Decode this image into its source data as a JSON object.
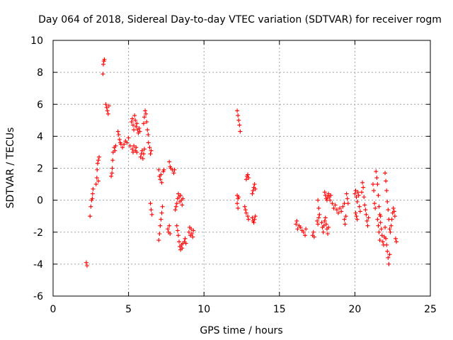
{
  "chart_data": {
    "type": "scatter",
    "title": "Day 064 of 2018, Sidereal Day-to-day VTEC variation (SDTVAR) for receiver rogm",
    "xlabel": "GPS time / hours",
    "ylabel": "SDTVAR / TECUs",
    "xlim": [
      0,
      25
    ],
    "ylim": [
      -6,
      10
    ],
    "xticks": [
      0,
      5,
      10,
      15,
      20,
      25
    ],
    "yticks": [
      -6,
      -4,
      -2,
      0,
      2,
      4,
      6,
      8,
      10
    ],
    "grid": true,
    "marker": "plus",
    "color": "#ff0000",
    "series": [
      {
        "name": "SDTVAR",
        "points": [
          [
            2.2,
            -3.9
          ],
          [
            2.25,
            -4.1
          ],
          [
            2.45,
            -1.0
          ],
          [
            2.5,
            -0.4
          ],
          [
            2.55,
            0.0
          ],
          [
            2.6,
            0.1
          ],
          [
            2.62,
            0.4
          ],
          [
            2.65,
            0.7
          ],
          [
            2.85,
            1.0
          ],
          [
            2.9,
            1.4
          ],
          [
            2.92,
            1.9
          ],
          [
            2.95,
            2.3
          ],
          [
            3.0,
            2.5
          ],
          [
            3.05,
            2.7
          ],
          [
            3.0,
            1.2
          ],
          [
            3.3,
            7.9
          ],
          [
            3.33,
            8.5
          ],
          [
            3.36,
            8.7
          ],
          [
            3.4,
            8.8
          ],
          [
            3.5,
            6.0
          ],
          [
            3.55,
            5.8
          ],
          [
            3.6,
            5.6
          ],
          [
            3.65,
            5.4
          ],
          [
            3.7,
            5.9
          ],
          [
            3.85,
            1.5
          ],
          [
            3.9,
            1.7
          ],
          [
            3.92,
            2.0
          ],
          [
            3.95,
            2.5
          ],
          [
            3.98,
            3.0
          ],
          [
            4.05,
            3.3
          ],
          [
            4.1,
            3.1
          ],
          [
            4.15,
            3.4
          ],
          [
            4.3,
            4.3
          ],
          [
            4.35,
            4.1
          ],
          [
            4.4,
            3.8
          ],
          [
            4.45,
            3.6
          ],
          [
            4.5,
            3.5
          ],
          [
            4.6,
            3.3
          ],
          [
            4.7,
            3.5
          ],
          [
            4.8,
            3.7
          ],
          [
            4.9,
            3.6
          ],
          [
            5.0,
            3.9
          ],
          [
            5.1,
            3.4
          ],
          [
            5.2,
            4.9
          ],
          [
            5.25,
            5.1
          ],
          [
            5.3,
            4.7
          ],
          [
            5.35,
            4.4
          ],
          [
            5.4,
            5.3
          ],
          [
            5.45,
            5.0
          ],
          [
            5.5,
            4.6
          ],
          [
            5.55,
            4.8
          ],
          [
            5.6,
            4.4
          ],
          [
            5.65,
            4.2
          ],
          [
            5.7,
            4.5
          ],
          [
            5.75,
            4.3
          ],
          [
            5.25,
            3.2
          ],
          [
            5.3,
            3.0
          ],
          [
            5.35,
            3.4
          ],
          [
            5.45,
            3.1
          ],
          [
            5.5,
            3.3
          ],
          [
            5.55,
            3.0
          ],
          [
            5.8,
            2.7
          ],
          [
            5.85,
            2.9
          ],
          [
            5.9,
            3.1
          ],
          [
            5.95,
            2.6
          ],
          [
            6.0,
            2.9
          ],
          [
            6.05,
            3.2
          ],
          [
            6.0,
            4.8
          ],
          [
            6.05,
            5.2
          ],
          [
            6.1,
            5.6
          ],
          [
            6.15,
            5.4
          ],
          [
            6.2,
            4.9
          ],
          [
            6.25,
            4.4
          ],
          [
            6.3,
            4.1
          ],
          [
            6.32,
            3.6
          ],
          [
            6.4,
            3.3
          ],
          [
            6.45,
            2.9
          ],
          [
            6.5,
            3.1
          ],
          [
            6.45,
            -0.2
          ],
          [
            6.5,
            -0.6
          ],
          [
            6.55,
            -0.9
          ],
          [
            7.0,
            -2.5
          ],
          [
            7.05,
            -2.1
          ],
          [
            7.1,
            -1.6
          ],
          [
            7.15,
            -1.2
          ],
          [
            7.2,
            -0.8
          ],
          [
            7.25,
            -0.4
          ],
          [
            7.0,
            1.9
          ],
          [
            7.05,
            1.5
          ],
          [
            7.1,
            1.3
          ],
          [
            7.15,
            1.6
          ],
          [
            7.2,
            1.1
          ],
          [
            7.3,
            1.8
          ],
          [
            7.35,
            1.9
          ],
          [
            7.6,
            -1.8
          ],
          [
            7.65,
            -2.0
          ],
          [
            7.7,
            -1.6
          ],
          [
            7.75,
            -2.1
          ],
          [
            7.7,
            2.4
          ],
          [
            7.75,
            2.1
          ],
          [
            7.8,
            2.0
          ],
          [
            7.9,
            1.9
          ],
          [
            8.0,
            1.7
          ],
          [
            8.05,
            1.9
          ],
          [
            8.1,
            -0.6
          ],
          [
            8.15,
            -0.4
          ],
          [
            8.2,
            -0.2
          ],
          [
            8.25,
            0.1
          ],
          [
            8.3,
            0.4
          ],
          [
            8.35,
            0.2
          ],
          [
            8.4,
            -0.1
          ],
          [
            8.45,
            0.3
          ],
          [
            8.5,
            0.0
          ],
          [
            8.55,
            -0.3
          ],
          [
            8.6,
            0.1
          ],
          [
            8.2,
            -1.6
          ],
          [
            8.25,
            -1.9
          ],
          [
            8.3,
            -2.2
          ],
          [
            8.35,
            -2.6
          ],
          [
            8.4,
            -2.9
          ],
          [
            8.45,
            -3.1
          ],
          [
            8.5,
            -2.8
          ],
          [
            8.55,
            -3.0
          ],
          [
            8.6,
            -2.7
          ],
          [
            8.7,
            -2.6
          ],
          [
            8.75,
            -2.4
          ],
          [
            8.8,
            -2.7
          ],
          [
            9.0,
            -2.0
          ],
          [
            9.05,
            -1.7
          ],
          [
            9.1,
            -2.2
          ],
          [
            9.15,
            -1.8
          ],
          [
            9.2,
            -2.1
          ],
          [
            9.25,
            -2.3
          ],
          [
            9.3,
            -1.9
          ],
          [
            12.2,
            5.6
          ],
          [
            12.25,
            5.3
          ],
          [
            12.3,
            5.0
          ],
          [
            12.35,
            4.7
          ],
          [
            12.4,
            4.3
          ],
          [
            12.2,
            0.3
          ],
          [
            12.25,
            0.1
          ],
          [
            12.3,
            0.2
          ],
          [
            12.2,
            -0.2
          ],
          [
            12.25,
            -0.5
          ],
          [
            12.7,
            -0.4
          ],
          [
            12.75,
            -0.6
          ],
          [
            12.8,
            -0.8
          ],
          [
            12.8,
            1.3
          ],
          [
            12.85,
            1.5
          ],
          [
            12.9,
            1.6
          ],
          [
            12.95,
            1.4
          ],
          [
            12.9,
            -1.0
          ],
          [
            12.95,
            -1.2
          ],
          [
            13.2,
            0.4
          ],
          [
            13.25,
            0.6
          ],
          [
            13.3,
            0.8
          ],
          [
            13.35,
            1.0
          ],
          [
            13.4,
            0.7
          ],
          [
            13.2,
            -1.1
          ],
          [
            13.25,
            -1.3
          ],
          [
            13.3,
            -1.4
          ],
          [
            13.35,
            -1.2
          ],
          [
            13.4,
            -1.0
          ],
          [
            16.1,
            -1.5
          ],
          [
            16.15,
            -1.3
          ],
          [
            16.2,
            -1.8
          ],
          [
            16.3,
            -1.6
          ],
          [
            16.4,
            -1.7
          ],
          [
            16.5,
            -1.9
          ],
          [
            16.6,
            -2.0
          ],
          [
            16.7,
            -2.2
          ],
          [
            16.75,
            -1.8
          ],
          [
            17.2,
            -2.2
          ],
          [
            17.25,
            -2.0
          ],
          [
            17.3,
            -2.3
          ],
          [
            17.5,
            -1.3
          ],
          [
            17.55,
            -1.5
          ],
          [
            17.6,
            -1.1
          ],
          [
            17.55,
            0.0
          ],
          [
            17.6,
            -0.5
          ],
          [
            17.65,
            -0.9
          ],
          [
            17.8,
            -1.4
          ],
          [
            17.85,
            -1.7
          ],
          [
            17.9,
            -2.0
          ],
          [
            17.95,
            -1.6
          ],
          [
            18.0,
            -1.3
          ],
          [
            18.05,
            -1.1
          ],
          [
            18.1,
            -1.5
          ],
          [
            18.15,
            -1.8
          ],
          [
            18.2,
            -2.1
          ],
          [
            18.25,
            -1.7
          ],
          [
            18.0,
            0.5
          ],
          [
            18.05,
            0.3
          ],
          [
            18.1,
            0.1
          ],
          [
            18.15,
            0.0
          ],
          [
            18.2,
            0.2
          ],
          [
            18.25,
            0.4
          ],
          [
            18.3,
            0.2
          ],
          [
            18.35,
            0.0
          ],
          [
            18.4,
            0.3
          ],
          [
            18.5,
            -0.2
          ],
          [
            18.6,
            -0.5
          ],
          [
            18.7,
            -0.3
          ],
          [
            18.8,
            -0.6
          ],
          [
            18.9,
            -0.8
          ],
          [
            19.0,
            -0.5
          ],
          [
            19.1,
            -0.7
          ],
          [
            19.2,
            -0.4
          ],
          [
            19.3,
            -0.2
          ],
          [
            19.3,
            -1.2
          ],
          [
            19.35,
            -1.5
          ],
          [
            19.4,
            -1.0
          ],
          [
            19.45,
            0.4
          ],
          [
            19.5,
            0.1
          ],
          [
            19.55,
            -0.2
          ],
          [
            20.0,
            0.4
          ],
          [
            20.05,
            0.6
          ],
          [
            20.1,
            0.2
          ],
          [
            20.15,
            -0.1
          ],
          [
            20.2,
            0.5
          ],
          [
            20.25,
            0.3
          ],
          [
            20.3,
            -0.4
          ],
          [
            20.35,
            -0.7
          ],
          [
            20.05,
            -0.8
          ],
          [
            20.1,
            -1.0
          ],
          [
            20.15,
            -1.2
          ],
          [
            20.45,
            0.5
          ],
          [
            20.5,
            1.1
          ],
          [
            20.55,
            0.8
          ],
          [
            20.6,
            0.2
          ],
          [
            20.65,
            -0.3
          ],
          [
            20.7,
            -0.6
          ],
          [
            20.75,
            -0.9
          ],
          [
            20.8,
            -1.3
          ],
          [
            20.85,
            -1.6
          ],
          [
            20.9,
            -1.1
          ],
          [
            21.2,
            1.0
          ],
          [
            21.25,
            0.6
          ],
          [
            21.3,
            -0.2
          ],
          [
            21.35,
            -0.5
          ],
          [
            21.4,
            1.8
          ],
          [
            21.45,
            1.4
          ],
          [
            21.5,
            1.0
          ],
          [
            21.55,
            0.3
          ],
          [
            21.6,
            -0.4
          ],
          [
            21.65,
            -0.9
          ],
          [
            21.7,
            -1.4
          ],
          [
            21.75,
            -1.8
          ],
          [
            21.8,
            -2.2
          ],
          [
            21.85,
            -2.6
          ],
          [
            21.9,
            -2.8
          ],
          [
            21.95,
            -2.3
          ],
          [
            22.0,
            -1.7
          ],
          [
            21.5,
            -1.2
          ],
          [
            21.55,
            -1.6
          ],
          [
            21.6,
            -2.0
          ],
          [
            21.65,
            -2.5
          ],
          [
            21.7,
            -1.0
          ],
          [
            22.0,
            1.7
          ],
          [
            22.05,
            1.2
          ],
          [
            22.1,
            0.6
          ],
          [
            22.15,
            -0.1
          ],
          [
            22.2,
            -0.6
          ],
          [
            22.25,
            -1.2
          ],
          [
            22.3,
            -1.8
          ],
          [
            22.05,
            -2.4
          ],
          [
            22.1,
            -2.8
          ],
          [
            22.15,
            -3.2
          ],
          [
            22.2,
            -3.6
          ],
          [
            22.25,
            -4.0
          ],
          [
            22.3,
            -3.4
          ],
          [
            22.35,
            -2.0
          ],
          [
            22.4,
            -1.6
          ],
          [
            22.45,
            -1.2
          ],
          [
            22.5,
            -0.8
          ],
          [
            22.55,
            -0.5
          ],
          [
            22.6,
            -0.7
          ],
          [
            22.65,
            -1.0
          ],
          [
            22.7,
            -2.4
          ],
          [
            22.75,
            -2.6
          ]
        ]
      }
    ]
  }
}
